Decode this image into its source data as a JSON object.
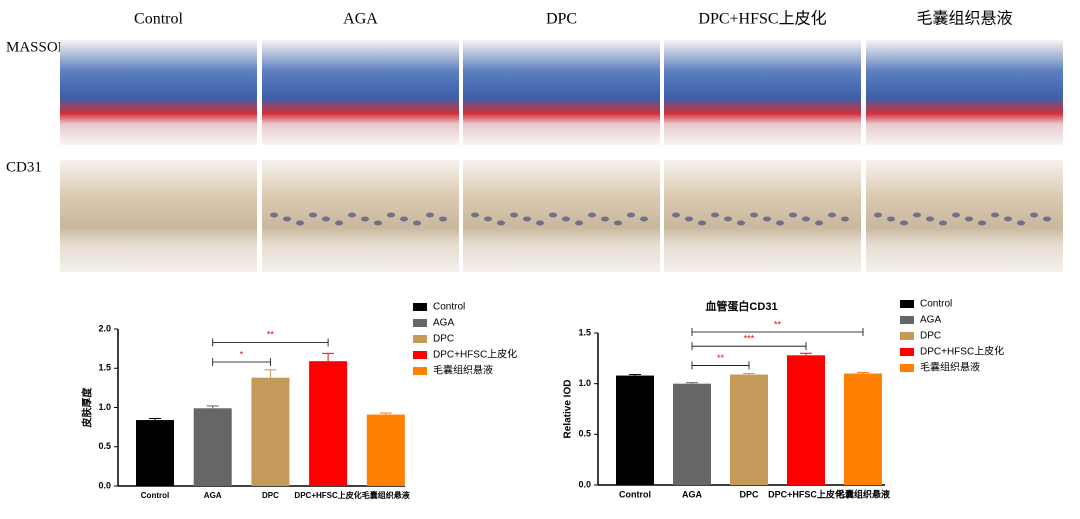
{
  "panel": {
    "columns": [
      "Control",
      "AGA",
      "DPC",
      "DPC+HFSC上皮化",
      "毛囊组织悬液"
    ],
    "rows": [
      "MASSON",
      "CD31"
    ]
  },
  "chart_data": [
    {
      "type": "bar",
      "ylabel": "皮肤厚度",
      "categories": [
        "Control",
        "AGA",
        "DPC",
        "DPC+HFSC上皮化",
        "毛囊组织悬液"
      ],
      "values": [
        0.84,
        0.99,
        1.38,
        1.59,
        0.91
      ],
      "errors": [
        0.02,
        0.03,
        0.1,
        0.1,
        0.02
      ],
      "colors": [
        "#000000",
        "#666666",
        "#c49a5a",
        "#ff0000",
        "#ff8000"
      ],
      "ylim": [
        0,
        2.0
      ],
      "yticks": [
        {
          "value": 0,
          "label": "0.0"
        },
        {
          "value": 0.5,
          "label": "0.5"
        },
        {
          "value": 1.0,
          "label": "1.0"
        },
        {
          "value": 1.5,
          "label": "1.5"
        },
        {
          "value": 2.0,
          "label": "2.0"
        }
      ],
      "annotations": [
        {
          "from": "AGA",
          "to": "DPC+HFSC上皮化",
          "y": 1.83,
          "label": "**"
        },
        {
          "from": "AGA",
          "to": "DPC",
          "y": 1.58,
          "label": "*"
        }
      ],
      "legend": "right"
    },
    {
      "type": "bar",
      "title": "血管蛋白CD31",
      "ylabel": "Relative IOD",
      "categories": [
        "Control",
        "AGA",
        "DPC",
        "DPC+HFSC上皮化",
        "毛囊组织悬液"
      ],
      "values": [
        1.08,
        1.0,
        1.09,
        1.28,
        1.1
      ],
      "errors": [
        0.01,
        0.01,
        0.01,
        0.02,
        0.01
      ],
      "colors": [
        "#000000",
        "#666666",
        "#c49a5a",
        "#ff0000",
        "#ff8000"
      ],
      "ylim": [
        0,
        1.5
      ],
      "yticks": [
        {
          "value": 0,
          "label": "0.0"
        },
        {
          "value": 0.5,
          "label": "0.5"
        },
        {
          "value": 1.0,
          "label": "1.0"
        },
        {
          "value": 1.5,
          "label": "1.5"
        }
      ],
      "annotations": [
        {
          "from": "AGA",
          "to": "毛囊组织悬液",
          "y": 1.51,
          "label": "**"
        },
        {
          "from": "AGA",
          "to": "DPC+HFSC上皮化",
          "y": 1.37,
          "label": "***"
        },
        {
          "from": "AGA",
          "to": "DPC",
          "y": 1.18,
          "label": "**"
        }
      ],
      "legend": "right"
    }
  ]
}
